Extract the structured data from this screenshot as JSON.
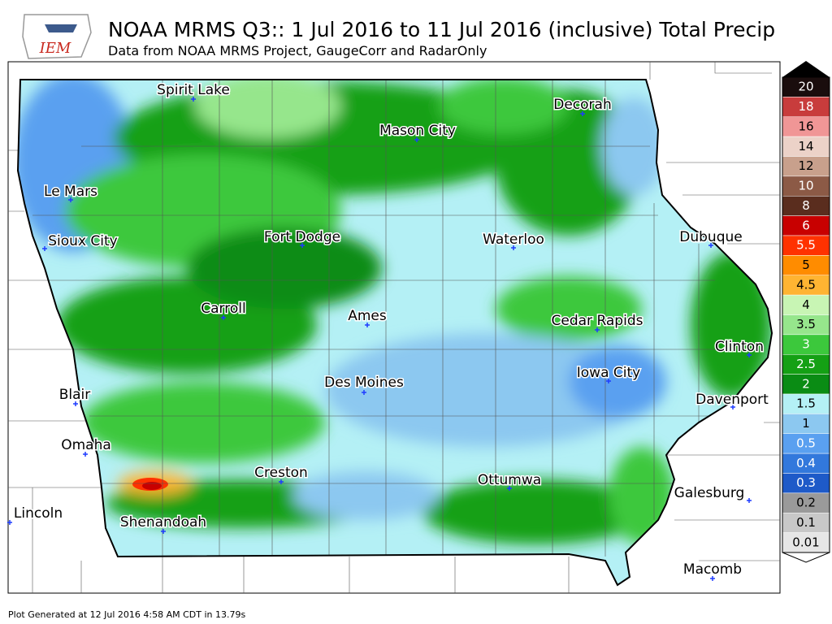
{
  "header": {
    "logo": "IEM",
    "title": "NOAA MRMS Q3:: 1 Jul 2016 to 11 Jul 2016 (inclusive) Total Precip",
    "subtitle": "Data from NOAA MRMS Project, GaugeCorr and RadarOnly"
  },
  "map": {
    "cities": [
      "Spirit Lake",
      "Decorah",
      "Mason City",
      "Le Mars",
      "Sioux City",
      "Fort Dodge",
      "Waterloo",
      "Dubuque",
      "Carroll",
      "Ames",
      "Cedar Rapids",
      "Clinton",
      "Des Moines",
      "Iowa City",
      "Blair",
      "Davenport",
      "Omaha",
      "Creston",
      "Ottumwa",
      "Galesburg",
      "Lincoln",
      "Shenandoah",
      "Macomb"
    ]
  },
  "legend": {
    "levels": [
      {
        "label": 20,
        "color": "#1a0d0d"
      },
      {
        "label": 18,
        "color": "#c83c3c"
      },
      {
        "label": 16,
        "color": "#f09696"
      },
      {
        "label": 14,
        "color": "#ecd2c8"
      },
      {
        "label": 12,
        "color": "#c8a08c"
      },
      {
        "label": 10,
        "color": "#8c5a46"
      },
      {
        "label": 8,
        "color": "#5a2d1e"
      },
      {
        "label": 6,
        "color": "#c80000"
      },
      {
        "label": 5.5,
        "color": "#ff3200"
      },
      {
        "label": 5,
        "color": "#ff8c00"
      },
      {
        "label": 4.5,
        "color": "#ffb432"
      },
      {
        "label": 4,
        "color": "#c8f5b4"
      },
      {
        "label": 3.5,
        "color": "#96e68c"
      },
      {
        "label": 3,
        "color": "#3cc83c"
      },
      {
        "label": 2.5,
        "color": "#14a014"
      },
      {
        "label": 2,
        "color": "#0a8c14"
      },
      {
        "label": 1.5,
        "color": "#b4f0f5"
      },
      {
        "label": 1,
        "color": "#8cc8f0"
      },
      {
        "label": 0.5,
        "color": "#5aa0f0"
      },
      {
        "label": 0.4,
        "color": "#3278dc"
      },
      {
        "label": 0.3,
        "color": "#1e5ac8"
      },
      {
        "label": 0.2,
        "color": "#9a9a9a"
      },
      {
        "label": 0.1,
        "color": "#c8c8c8"
      },
      {
        "label": 0.01,
        "color": "#e6e6e6"
      }
    ]
  },
  "footer": "Plot Generated at 12 Jul 2016 4:58 AM CDT in 13.79s"
}
